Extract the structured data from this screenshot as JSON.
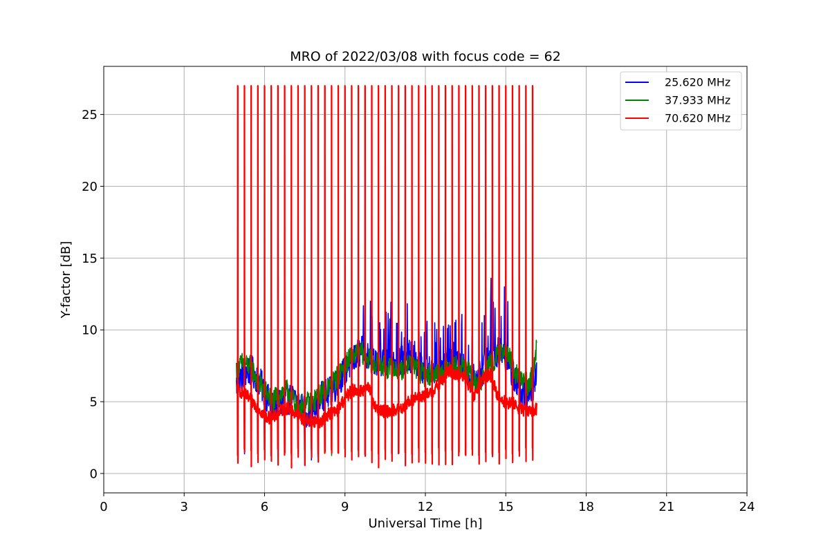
{
  "chart_data": {
    "type": "line",
    "title": "MRO of 2022/03/08 with focus code = 62",
    "xlabel": "Universal Time [h]",
    "ylabel": "Y-factor [dB]",
    "xlim": [
      0,
      24
    ],
    "ylim": [
      -1.35,
      28.35
    ],
    "xticks": [
      0,
      3,
      6,
      9,
      12,
      15,
      18,
      21,
      24
    ],
    "yticks": [
      0,
      5,
      10,
      15,
      20,
      25
    ],
    "grid": true,
    "legend_position": "top-right",
    "spike_times": [
      5.0,
      5.25,
      5.5,
      5.75,
      6.0,
      6.25,
      6.5,
      6.75,
      7.0,
      7.25,
      7.5,
      7.75,
      8.0,
      8.25,
      8.5,
      8.75,
      9.0,
      9.25,
      9.5,
      9.75,
      10.0,
      10.25,
      10.5,
      10.75,
      11.0,
      11.25,
      11.5,
      11.75,
      12.0,
      12.25,
      12.5,
      12.75,
      13.0,
      13.25,
      13.5,
      13.75,
      14.0,
      14.25,
      14.5,
      14.75,
      15.0,
      15.25,
      15.5,
      15.75,
      16.0
    ],
    "spike_peak": 27.0,
    "series": [
      {
        "name": "25.620 MHz",
        "color": "#0000ff",
        "x": [
          4.95,
          5.2,
          5.5,
          5.8,
          6.0,
          6.3,
          6.6,
          6.9,
          7.2,
          7.5,
          7.8,
          8.1,
          8.4,
          8.7,
          9.0,
          9.3,
          9.6,
          9.9,
          10.2,
          10.5,
          10.8,
          11.1,
          11.4,
          11.7,
          12.0,
          12.3,
          12.6,
          12.9,
          13.2,
          13.5,
          13.8,
          14.1,
          14.4,
          14.7,
          15.0,
          15.3,
          15.6,
          15.9,
          16.15
        ],
        "y": [
          6.2,
          7.0,
          7.2,
          6.5,
          5.6,
          4.6,
          5.0,
          5.2,
          5.1,
          4.3,
          4.4,
          5.3,
          5.6,
          6.2,
          7.2,
          7.9,
          8.5,
          8.3,
          7.9,
          7.7,
          7.5,
          7.8,
          8.2,
          7.6,
          7.0,
          7.2,
          7.4,
          7.6,
          7.8,
          7.2,
          6.6,
          7.0,
          8.6,
          8.4,
          8.2,
          6.8,
          5.6,
          5.4,
          6.8
        ],
        "burst_peaks": [
          [
            9.95,
            12.0
          ],
          [
            11.0,
            11.5
          ],
          [
            14.45,
            13.6
          ],
          [
            14.95,
            13.0
          ],
          [
            10.3,
            10.5
          ],
          [
            13.1,
            10.5
          ],
          [
            14.2,
            11.0
          ]
        ]
      },
      {
        "name": "37.933 MHz",
        "color": "#008000",
        "x": [
          4.95,
          5.2,
          5.5,
          5.8,
          6.0,
          6.3,
          6.6,
          6.9,
          7.2,
          7.5,
          7.8,
          8.1,
          8.4,
          8.7,
          9.0,
          9.3,
          9.6,
          9.9,
          10.2,
          10.5,
          10.8,
          11.1,
          11.4,
          11.7,
          12.0,
          12.3,
          12.6,
          12.9,
          13.2,
          13.5,
          13.8,
          14.1,
          14.4,
          14.7,
          15.0,
          15.3,
          15.6,
          15.9,
          16.15
        ],
        "y": [
          7.3,
          7.7,
          7.4,
          6.3,
          5.8,
          5.0,
          5.6,
          5.8,
          4.6,
          4.9,
          4.9,
          5.6,
          6.0,
          6.7,
          7.6,
          8.2,
          8.5,
          7.9,
          7.6,
          7.4,
          7.2,
          7.2,
          7.8,
          7.2,
          6.8,
          7.0,
          7.0,
          7.5,
          7.4,
          7.4,
          6.4,
          6.4,
          7.6,
          8.1,
          8.9,
          7.1,
          6.5,
          6.1,
          8.7
        ]
      },
      {
        "name": "70.620 MHz",
        "color": "#ff0000",
        "x": [
          4.95,
          5.2,
          5.5,
          5.8,
          6.0,
          6.3,
          6.6,
          6.9,
          7.2,
          7.5,
          7.8,
          8.1,
          8.4,
          8.7,
          9.0,
          9.3,
          9.6,
          9.9,
          10.2,
          10.5,
          10.8,
          11.1,
          11.4,
          11.7,
          12.0,
          12.3,
          12.6,
          12.9,
          13.2,
          13.5,
          13.8,
          14.1,
          14.4,
          14.7,
          15.0,
          15.3,
          15.6,
          15.9,
          16.15
        ],
        "y": [
          5.9,
          5.6,
          5.1,
          4.5,
          4.0,
          3.8,
          4.4,
          4.6,
          4.1,
          3.7,
          3.7,
          3.6,
          4.2,
          4.3,
          5.3,
          5.8,
          5.8,
          5.9,
          4.4,
          4.3,
          4.4,
          4.5,
          5.0,
          5.3,
          5.4,
          5.8,
          6.4,
          7.2,
          6.8,
          6.7,
          5.3,
          6.4,
          7.0,
          5.4,
          4.9,
          4.9,
          4.4,
          4.4,
          4.5
        ]
      }
    ]
  }
}
